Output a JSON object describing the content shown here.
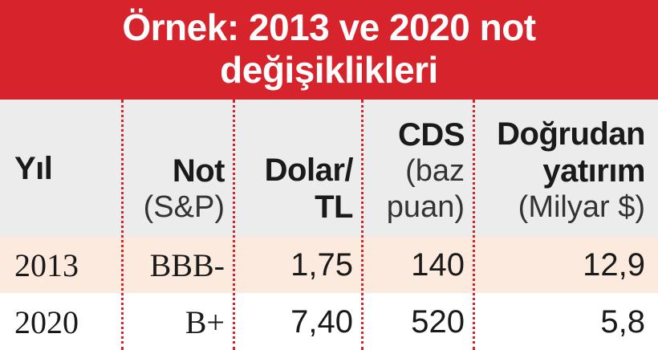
{
  "chart_data": {
    "type": "table",
    "title_lines": [
      "Örnek: 2013 ve 2020 not",
      "değişiklikleri"
    ],
    "columns": [
      {
        "label": "Yıl",
        "sub": []
      },
      {
        "label": "Not",
        "sub": [
          "(S&P)"
        ]
      },
      {
        "label": "Dolar/ TL",
        "label_lines": [
          "Dolar/",
          "TL"
        ],
        "sub": []
      },
      {
        "label": "CDS",
        "sub": [
          "(baz",
          "puan)"
        ]
      },
      {
        "label": "Doğrudan yatırım",
        "label_lines": [
          "Doğrudan",
          "yatırım"
        ],
        "sub": [
          "(Milyar $)"
        ]
      }
    ],
    "rows": [
      {
        "year": "2013",
        "rating": "BBB-",
        "usd_try": "1,75",
        "cds": "140",
        "fdi": "12,9"
      },
      {
        "year": "2020",
        "rating": "B+",
        "usd_try": "7,40",
        "cds": "520",
        "fdi": "5,8"
      }
    ]
  },
  "colors": {
    "accent_red": "#d7232b",
    "header_bg": "#ececec",
    "row_highlight": "#fdeadf",
    "text": "#1a1a1a"
  }
}
